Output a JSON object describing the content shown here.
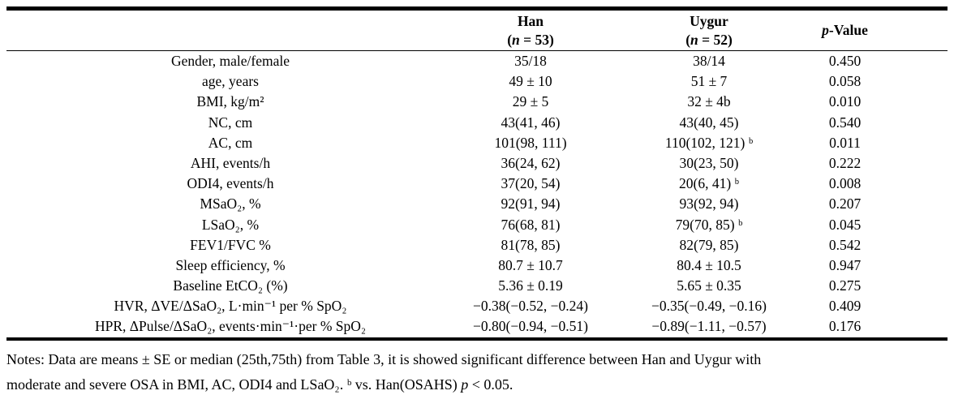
{
  "table": {
    "header": {
      "row_label": "",
      "han": {
        "line1": "Han",
        "line2_pre": "(",
        "line2_italic": "n",
        "line2_post": " = 53)"
      },
      "uygur": {
        "line1": "Uygur",
        "line2_pre": "(",
        "line2_italic": "n",
        "line2_post": " = 52)"
      },
      "pvalue": {
        "italic": "p",
        "rest": "-Value"
      }
    },
    "rows": [
      {
        "label": "Gender, male/female",
        "han": "35/18",
        "uygur": "38/14",
        "p": "0.450"
      },
      {
        "label": "age, years",
        "han": "49 ± 10",
        "uygur": "51 ± 7",
        "p": "0.058"
      },
      {
        "label": "BMI, kg/m²",
        "han": "29 ± 5",
        "uygur": "32 ± 4b",
        "p": "0.010"
      },
      {
        "label": "NC, cm",
        "han": "43(41, 46)",
        "uygur": "43(40, 45)",
        "p": "0.540"
      },
      {
        "label": "AC, cm",
        "han": "101(98, 111)",
        "uygur": "110(102, 121) ᵇ",
        "p": "0.011"
      },
      {
        "label": "AHI, events/h",
        "han": "36(24, 62)",
        "uygur": "30(23, 50)",
        "p": "0.222"
      },
      {
        "label": "ODI4, events/h",
        "han": "37(20, 54)",
        "uygur": "20(6, 41) ᵇ",
        "p": "0.008"
      },
      {
        "label": "MSaO₂, %",
        "han": "92(91, 94)",
        "uygur": "93(92, 94)",
        "p": "0.207"
      },
      {
        "label": "LSaO₂, %",
        "han": "76(68, 81)",
        "uygur": "79(70, 85) ᵇ",
        "p": "0.045"
      },
      {
        "label": "FEV1/FVC %",
        "han": "81(78, 85)",
        "uygur": "82(79, 85)",
        "p": "0.542"
      },
      {
        "label": "Sleep efficiency, %",
        "han": "80.7 ± 10.7",
        "uygur": "80.4 ± 10.5",
        "p": "0.947"
      },
      {
        "label": "Baseline EtCO₂ (%)",
        "han": "5.36 ± 0.19",
        "uygur": "5.65 ± 0.35",
        "p": "0.275"
      },
      {
        "label": "HVR, ΔVE/ΔSaO₂, L·min⁻¹ per % SpO₂",
        "han": "−0.38(−0.52, −0.24)",
        "uygur": "−0.35(−0.49, −0.16)",
        "p": "0.409"
      },
      {
        "label": "HPR, ΔPulse/ΔSaO₂, events·min⁻¹·per % SpO₂",
        "han": "−0.80(−0.94, −0.51)",
        "uygur": "−0.89(−1.11, −0.57)",
        "p": "0.176"
      }
    ]
  },
  "notes": {
    "line1": "Notes: Data are means ± SE or median (25th,75th) from Table 3, it is showed significant difference between Han and Uygur with",
    "line2_pre": "moderate and severe OSA in BMI, AC, ODI4 and LSaO₂. ᵇ vs. Han(OSAHS) ",
    "line2_italic": "p",
    "line2_post": " < 0.05."
  },
  "colors": {
    "text": "#000000",
    "background": "#ffffff",
    "rule": "#000000"
  }
}
